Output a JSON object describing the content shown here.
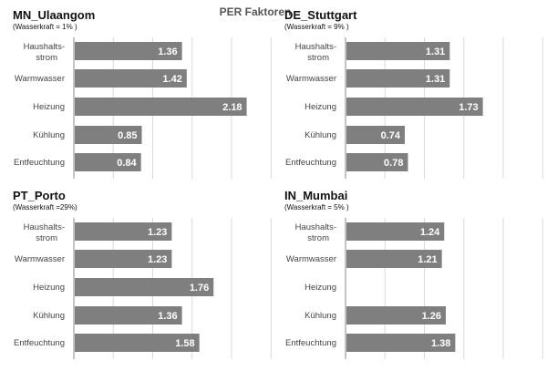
{
  "chart_data": {
    "type": "bar",
    "title": "PER Faktoren",
    "categories": [
      [
        "Haushalts-",
        "strom"
      ],
      [
        "Warmwasser"
      ],
      [
        "Heizung"
      ],
      [
        "Kühlung"
      ],
      [
        "Entfeuchtung"
      ]
    ],
    "xlim": [
      0,
      2.5
    ],
    "grid": true,
    "bar_color": "#7f7f7f",
    "panels": [
      {
        "title": "MN_Ulaangom",
        "subtitle": "(Wasserkraft = 1%   )",
        "values": [
          1.36,
          1.42,
          2.18,
          0.85,
          0.84
        ],
        "labels": [
          "1.36",
          "1.42",
          "2.18",
          "0.85",
          "0.84"
        ]
      },
      {
        "title": "DE_Stuttgart",
        "subtitle": "(Wasserkraft =  9% )",
        "values": [
          1.31,
          1.31,
          1.73,
          0.74,
          0.78
        ],
        "labels": [
          "1.31",
          "1.31",
          "1.73",
          "0.74",
          "0.78"
        ]
      },
      {
        "title": "PT_Porto",
        "subtitle": "(Wasserkraft =29%)",
        "values": [
          1.23,
          1.23,
          1.76,
          1.36,
          1.58
        ],
        "labels": [
          "1.23",
          "1.23",
          "1.76",
          "1.36",
          "1.58"
        ]
      },
      {
        "title": "IN_Mumbai",
        "subtitle": "(Wasserkraft =  5% )",
        "values": [
          1.24,
          1.21,
          null,
          1.26,
          1.38
        ],
        "labels": [
          "1.24",
          "1.21",
          "",
          "1.26",
          "1.38"
        ]
      }
    ]
  }
}
